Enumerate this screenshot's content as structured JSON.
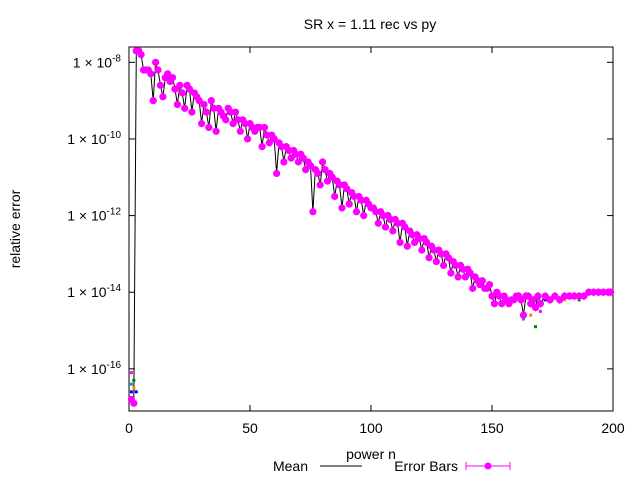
{
  "chart_data": {
    "type": "line",
    "title": "SR x = 1.11 rec vs py",
    "xlabel": "power n",
    "ylabel": "relative error",
    "xlim": [
      0,
      200
    ],
    "ylim_log10": [
      -17.1,
      -7.6
    ],
    "y_scale": "log",
    "grid": false,
    "legend_placement": "bottom",
    "x_ticks": [
      0,
      50,
      100,
      150,
      200
    ],
    "y_ticks": [
      {
        "exp": -8,
        "mant": "1 × 10",
        "sup": "-8"
      },
      {
        "exp": -10,
        "mant": "1 × 10",
        "sup": "-10"
      },
      {
        "exp": -12,
        "mant": "1 × 10",
        "sup": "-12"
      },
      {
        "exp": -14,
        "mant": "1 × 10",
        "sup": "-14"
      },
      {
        "exp": -16,
        "mant": "1 × 10",
        "sup": "-16"
      }
    ],
    "series": [
      {
        "name": "Mean",
        "color": "#000000",
        "style": "line"
      },
      {
        "name": "Error Bars",
        "color": "#ff00ff",
        "style": "points-with-error-bars"
      }
    ],
    "points_log10": [
      [
        1,
        -16.8
      ],
      [
        2,
        -16.9
      ],
      [
        3,
        -7.7
      ],
      [
        4,
        -7.7
      ],
      [
        5,
        -7.8
      ],
      [
        6,
        -8.2
      ],
      [
        7,
        -8.2
      ],
      [
        8,
        -8.2
      ],
      [
        9,
        -8.3
      ],
      [
        10,
        -9.0
      ],
      [
        11,
        -8.0
      ],
      [
        12,
        -8.2
      ],
      [
        13,
        -8.6
      ],
      [
        14,
        -8.9
      ],
      [
        15,
        -8.4
      ],
      [
        16,
        -8.3
      ],
      [
        17,
        -8.5
      ],
      [
        18,
        -8.4
      ],
      [
        19,
        -8.7
      ],
      [
        20,
        -9.1
      ],
      [
        21,
        -8.6
      ],
      [
        22,
        -8.8
      ],
      [
        23,
        -9.2
      ],
      [
        24,
        -8.6
      ],
      [
        25,
        -8.7
      ],
      [
        26,
        -9.3
      ],
      [
        27,
        -8.8
      ],
      [
        28,
        -8.9
      ],
      [
        29,
        -9.0
      ],
      [
        30,
        -9.6
      ],
      [
        31,
        -9.1
      ],
      [
        32,
        -9.3
      ],
      [
        33,
        -9.7
      ],
      [
        34,
        -9.0
      ],
      [
        35,
        -9.2
      ],
      [
        36,
        -9.8
      ],
      [
        37,
        -9.2
      ],
      [
        38,
        -9.3
      ],
      [
        39,
        -9.4
      ],
      [
        40,
        -9.5
      ],
      [
        41,
        -9.2
      ],
      [
        42,
        -9.3
      ],
      [
        43,
        -9.6
      ],
      [
        44,
        -9.3
      ],
      [
        45,
        -9.5
      ],
      [
        46,
        -9.8
      ],
      [
        47,
        -9.5
      ],
      [
        48,
        -9.6
      ],
      [
        49,
        -10.0
      ],
      [
        50,
        -9.6
      ],
      [
        51,
        -9.7
      ],
      [
        52,
        -9.8
      ],
      [
        53,
        -9.7
      ],
      [
        54,
        -9.7
      ],
      [
        55,
        -10.2
      ],
      [
        56,
        -9.7
      ],
      [
        57,
        -9.9
      ],
      [
        58,
        -10.1
      ],
      [
        59,
        -9.9
      ],
      [
        60,
        -10.0
      ],
      [
        61,
        -10.9
      ],
      [
        62,
        -10.1
      ],
      [
        63,
        -10.2
      ],
      [
        64,
        -10.6
      ],
      [
        65,
        -10.2
      ],
      [
        66,
        -10.3
      ],
      [
        67,
        -10.5
      ],
      [
        68,
        -10.3
      ],
      [
        69,
        -10.4
      ],
      [
        70,
        -10.6
      ],
      [
        71,
        -10.4
      ],
      [
        72,
        -10.5
      ],
      [
        73,
        -10.8
      ],
      [
        74,
        -10.6
      ],
      [
        75,
        -10.7
      ],
      [
        76,
        -11.9
      ],
      [
        77,
        -10.8
      ],
      [
        78,
        -10.9
      ],
      [
        79,
        -11.2
      ],
      [
        80,
        -10.6
      ],
      [
        81,
        -10.8
      ],
      [
        82,
        -11.1
      ],
      [
        83,
        -10.9
      ],
      [
        84,
        -11.0
      ],
      [
        85,
        -11.5
      ],
      [
        86,
        -11.1
      ],
      [
        87,
        -11.2
      ],
      [
        88,
        -11.8
      ],
      [
        89,
        -11.2
      ],
      [
        90,
        -11.3
      ],
      [
        91,
        -11.7
      ],
      [
        92,
        -11.4
      ],
      [
        93,
        -11.5
      ],
      [
        94,
        -11.9
      ],
      [
        95,
        -11.5
      ],
      [
        96,
        -11.6
      ],
      [
        97,
        -12.0
      ],
      [
        98,
        -11.6
      ],
      [
        99,
        -11.7
      ],
      [
        100,
        -11.8
      ],
      [
        101,
        -11.8
      ],
      [
        102,
        -11.9
      ],
      [
        103,
        -12.2
      ],
      [
        104,
        -11.9
      ],
      [
        105,
        -12.0
      ],
      [
        106,
        -12.3
      ],
      [
        107,
        -12.0
      ],
      [
        108,
        -12.1
      ],
      [
        109,
        -12.4
      ],
      [
        110,
        -12.1
      ],
      [
        111,
        -12.2
      ],
      [
        112,
        -12.7
      ],
      [
        113,
        -12.2
      ],
      [
        114,
        -12.3
      ],
      [
        115,
        -12.8
      ],
      [
        116,
        -12.4
      ],
      [
        117,
        -12.5
      ],
      [
        118,
        -12.7
      ],
      [
        119,
        -12.5
      ],
      [
        120,
        -12.6
      ],
      [
        121,
        -12.9
      ],
      [
        122,
        -12.6
      ],
      [
        123,
        -12.7
      ],
      [
        124,
        -13.1
      ],
      [
        125,
        -12.8
      ],
      [
        126,
        -12.9
      ],
      [
        127,
        -13.2
      ],
      [
        128,
        -12.9
      ],
      [
        129,
        -13.0
      ],
      [
        130,
        -13.3
      ],
      [
        131,
        -13.0
      ],
      [
        132,
        -13.1
      ],
      [
        133,
        -13.5
      ],
      [
        134,
        -13.2
      ],
      [
        135,
        -13.3
      ],
      [
        136,
        -13.6
      ],
      [
        137,
        -13.3
      ],
      [
        138,
        -13.4
      ],
      [
        139,
        -13.6
      ],
      [
        140,
        -13.4
      ],
      [
        141,
        -13.5
      ],
      [
        142,
        -13.9
      ],
      [
        143,
        -13.6
      ],
      [
        144,
        -13.7
      ],
      [
        145,
        -13.8
      ],
      [
        146,
        -13.7
      ],
      [
        147,
        -13.9
      ],
      [
        148,
        -13.9
      ],
      [
        149,
        -13.8
      ],
      [
        150,
        -14.1
      ],
      [
        151,
        -14.3
      ],
      [
        152,
        -14.0
      ],
      [
        153,
        -14.1
      ],
      [
        154,
        -14.3
      ],
      [
        155,
        -14.1
      ],
      [
        156,
        -14.2
      ],
      [
        157,
        -14.3
      ],
      [
        158,
        -14.2
      ],
      [
        159,
        -14.2
      ],
      [
        160,
        -14.1
      ],
      [
        161,
        -14.1
      ],
      [
        162,
        -14.2
      ],
      [
        163,
        -14.6
      ],
      [
        164,
        -14.1
      ],
      [
        165,
        -14.1
      ],
      [
        166,
        -14.3
      ],
      [
        167,
        -14.2
      ],
      [
        168,
        -14.4
      ],
      [
        169,
        -14.1
      ],
      [
        170,
        -14.3
      ],
      [
        172,
        -14.1
      ],
      [
        174,
        -14.2
      ],
      [
        176,
        -14.1
      ],
      [
        178,
        -14.2
      ],
      [
        180,
        -14.1
      ],
      [
        182,
        -14.1
      ],
      [
        184,
        -14.1
      ],
      [
        186,
        -14.1
      ],
      [
        188,
        -14.1
      ],
      [
        190,
        -14.0
      ],
      [
        192,
        -14.0
      ],
      [
        194,
        -14.0
      ],
      [
        196,
        -14.0
      ],
      [
        198,
        -14.0
      ],
      [
        199,
        -14.0
      ]
    ],
    "scatter_extra_log10": [
      [
        1,
        -16.6
      ],
      [
        1,
        -16.4
      ],
      [
        2,
        -16.5
      ],
      [
        2,
        -16.3
      ],
      [
        1,
        -16.1
      ],
      [
        3,
        -16.6
      ],
      [
        163,
        -14.7
      ],
      [
        166,
        -14.6
      ],
      [
        168,
        -14.9
      ],
      [
        170,
        -14.5
      ],
      [
        172,
        -14.2
      ],
      [
        176,
        -14.1
      ],
      [
        180,
        -14.2
      ],
      [
        186,
        -14.2
      ],
      [
        188,
        -14.1
      ]
    ]
  },
  "colors": {
    "mean_line": "#000000",
    "error_bars": "#ff00ff"
  }
}
